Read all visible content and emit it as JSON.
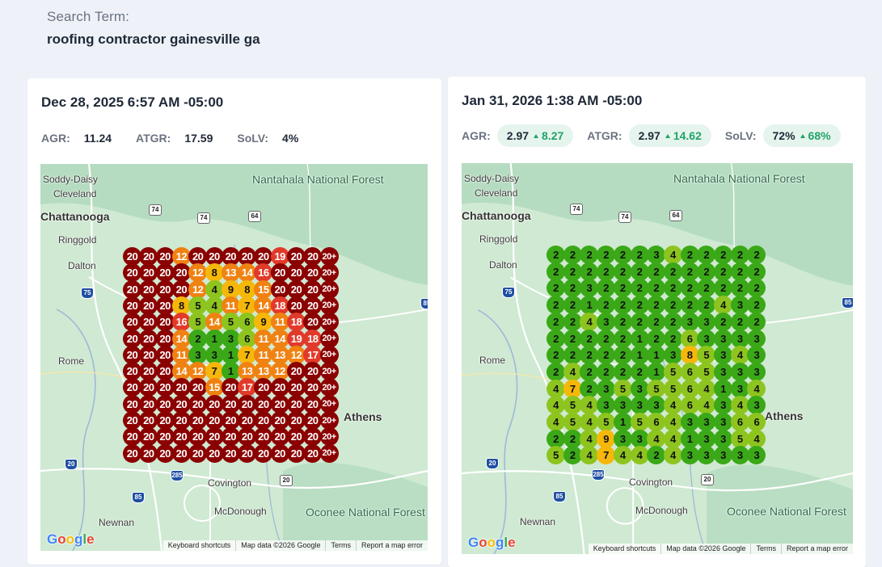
{
  "search": {
    "label": "Search Term:",
    "term": "roofing contractor gainesville ga"
  },
  "colors": {
    "rank_1_3": "#3aa817",
    "rank_4_6": "#8dc41e",
    "rank_7_10": "#f5b80a",
    "rank_11_15": "#f08212",
    "rank_16_19": "#e23a2a",
    "rank_20_plus": "#8b0000"
  },
  "map_common": {
    "places": {
      "soddy_daisy": "Soddy-Daisy",
      "cleveland": "Cleveland",
      "chattanooga": "Chattanooga",
      "ringgold": "Ringgold",
      "dalton": "Dalton",
      "rome": "Rome",
      "athens": "Athens",
      "covington": "Covington",
      "mcdonough": "McDonough",
      "newnan": "Newnan",
      "nantahala": "Nantahala National Forest",
      "oconee": "Oconee National Forest"
    },
    "footer": {
      "shortcuts": "Keyboard shortcuts",
      "map_data": "Map data ©2026 Google",
      "terms": "Terms",
      "report": "Report a map error"
    },
    "logo": "Google"
  },
  "reports": [
    {
      "date": "Dec 28, 2025 6:57 AM -05:00",
      "metrics": {
        "agr_label": "AGR:",
        "agr_value": "11.24",
        "atgr_label": "ATGR:",
        "atgr_value": "17.59",
        "solv_label": "SoLV:",
        "solv_value": "4%"
      },
      "grid": [
        [
          "20",
          "20",
          "20",
          "12",
          "20",
          "20",
          "20",
          "20",
          "20",
          "19",
          "20",
          "20",
          "20+"
        ],
        [
          "20",
          "20",
          "20",
          "20",
          "12",
          "8",
          "13",
          "14",
          "16",
          "20",
          "20",
          "20",
          "20+"
        ],
        [
          "20",
          "20",
          "20",
          "20",
          "12",
          "4",
          "9",
          "8",
          "15",
          "20",
          "20",
          "20",
          "20+"
        ],
        [
          "20",
          "20",
          "20",
          "8",
          "5",
          "4",
          "11",
          "7",
          "14",
          "18",
          "20",
          "20",
          "20+"
        ],
        [
          "20",
          "20",
          "20",
          "16",
          "5",
          "14",
          "5",
          "6",
          "9",
          "11",
          "18",
          "20",
          "20+"
        ],
        [
          "20",
          "20",
          "20",
          "14",
          "2",
          "1",
          "3",
          "6",
          "11",
          "14",
          "19",
          "18",
          "20+"
        ],
        [
          "20",
          "20",
          "20",
          "11",
          "3",
          "3",
          "1",
          "7",
          "11",
          "13",
          "12",
          "17",
          "20+"
        ],
        [
          "20",
          "20",
          "20",
          "14",
          "12",
          "7",
          "1",
          "13",
          "13",
          "12",
          "20",
          "20",
          "20+"
        ],
        [
          "20",
          "20",
          "20",
          "20",
          "20",
          "15",
          "20",
          "17",
          "20",
          "20",
          "20",
          "20",
          "20+"
        ],
        [
          "20",
          "20",
          "20",
          "20",
          "20",
          "20",
          "20",
          "20",
          "20",
          "20",
          "20",
          "20",
          "20+"
        ],
        [
          "20",
          "20",
          "20",
          "20",
          "20",
          "20",
          "20",
          "20",
          "20",
          "20",
          "20",
          "20",
          "20+"
        ],
        [
          "20",
          "20",
          "20",
          "20",
          "20",
          "20",
          "20",
          "20",
          "20",
          "20",
          "20",
          "20",
          "20+"
        ],
        [
          "20",
          "20",
          "20",
          "20",
          "20",
          "20",
          "20",
          "20",
          "20",
          "20",
          "20",
          "20",
          "20+"
        ]
      ]
    },
    {
      "date": "Jan 31, 2026 1:38 AM -05:00",
      "metrics": {
        "agr_label": "AGR:",
        "agr_value": "2.97",
        "agr_delta": "8.27",
        "atgr_label": "ATGR:",
        "atgr_value": "2.97",
        "atgr_delta": "14.62",
        "solv_label": "SoLV:",
        "solv_value": "72%",
        "solv_delta": "68%"
      },
      "grid": [
        [
          "2",
          "2",
          "2",
          "2",
          "2",
          "2",
          "3",
          "4",
          "2",
          "2",
          "2",
          "2",
          "2"
        ],
        [
          "2",
          "2",
          "2",
          "2",
          "2",
          "2",
          "2",
          "2",
          "2",
          "2",
          "2",
          "2",
          "2"
        ],
        [
          "2",
          "2",
          "3",
          "2",
          "2",
          "2",
          "2",
          "2",
          "2",
          "2",
          "2",
          "2",
          "2"
        ],
        [
          "2",
          "2",
          "1",
          "2",
          "2",
          "2",
          "2",
          "2",
          "2",
          "2",
          "4",
          "3",
          "2"
        ],
        [
          "2",
          "2",
          "4",
          "3",
          "2",
          "2",
          "2",
          "2",
          "3",
          "3",
          "2",
          "2",
          "2"
        ],
        [
          "2",
          "2",
          "2",
          "2",
          "2",
          "1",
          "2",
          "2",
          "6",
          "3",
          "3",
          "3",
          "3"
        ],
        [
          "2",
          "2",
          "2",
          "2",
          "2",
          "1",
          "1",
          "3",
          "8",
          "5",
          "3",
          "4",
          "3"
        ],
        [
          "2",
          "4",
          "2",
          "2",
          "2",
          "2",
          "1",
          "5",
          "6",
          "5",
          "3",
          "3",
          "3"
        ],
        [
          "4",
          "7",
          "2",
          "3",
          "5",
          "3",
          "5",
          "5",
          "6",
          "4",
          "1",
          "3",
          "4"
        ],
        [
          "4",
          "5",
          "4",
          "3",
          "3",
          "3",
          "3",
          "4",
          "6",
          "4",
          "3",
          "4",
          "3"
        ],
        [
          "4",
          "5",
          "4",
          "5",
          "1",
          "5",
          "6",
          "4",
          "3",
          "3",
          "3",
          "6",
          "6"
        ],
        [
          "2",
          "2",
          "4",
          "9",
          "3",
          "3",
          "4",
          "4",
          "1",
          "3",
          "3",
          "5",
          "4"
        ],
        [
          "5",
          "2",
          "4",
          "7",
          "4",
          "4",
          "2",
          "4",
          "3",
          "3",
          "3",
          "3",
          "3"
        ]
      ]
    }
  ]
}
